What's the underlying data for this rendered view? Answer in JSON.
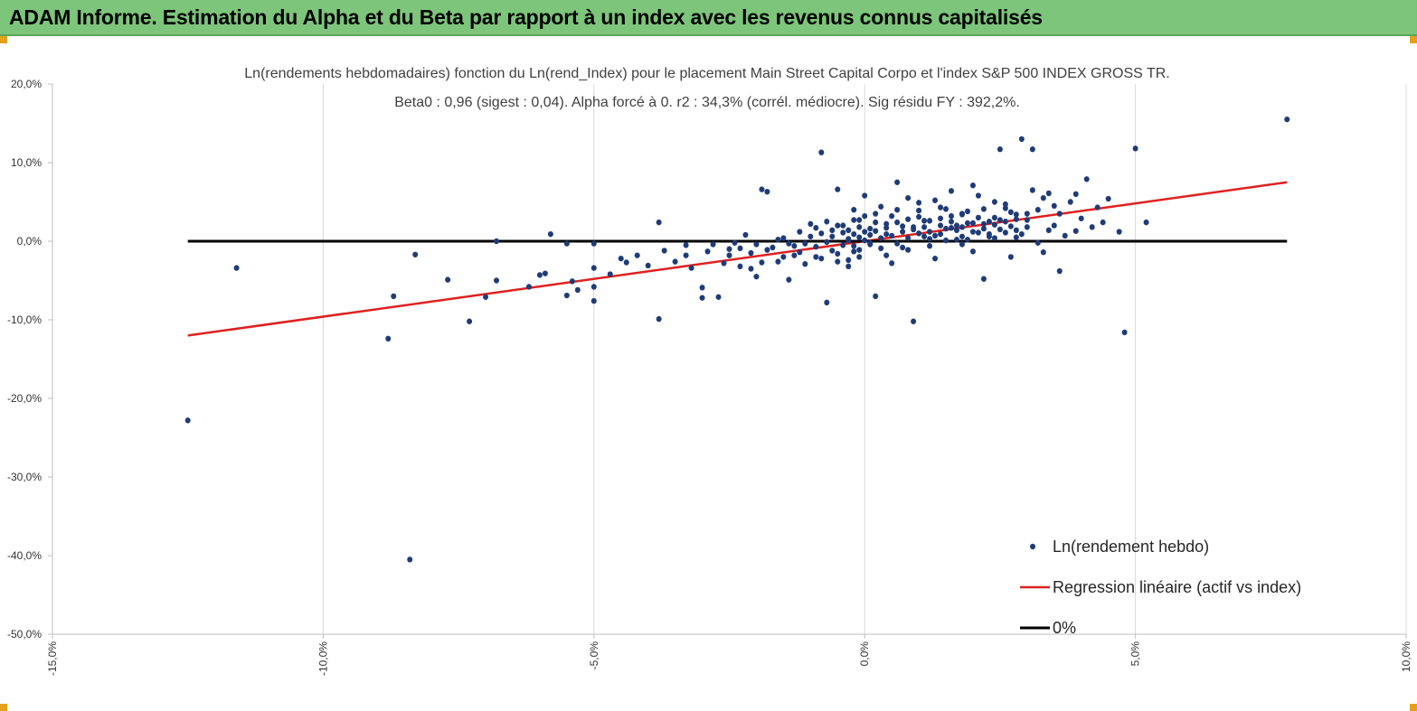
{
  "banner": {
    "title": "ADAM Informe. Estimation du Alpha et du Beta par rapport à un index avec les revenus connus capitalisés",
    "color": "#7cc57a"
  },
  "chart_data": {
    "type": "scatter",
    "title": "Ln(rendements hebdomadaires) fonction du Ln(rend_Index) pour le placement Main Street Capital Corpo et l'index S&P 500 INDEX GROSS TR.",
    "subtitle": "Beta0 : 0,96  (sigest : 0,04). Alpha forcé à 0. r2 : 34,3% (corrél. médiocre). Sig résidu FY : 392,2%.",
    "xlabel": "",
    "ylabel": "",
    "xlim": [
      -0.15,
      0.1
    ],
    "ylim": [
      -0.5,
      0.2
    ],
    "x_ticks": [
      -0.15,
      -0.1,
      -0.05,
      0.0,
      0.05,
      0.1
    ],
    "x_tick_labels": [
      "-15,0%",
      "-10,0%",
      "-5,0%",
      "0,0%",
      "5,0%",
      "10,0%"
    ],
    "y_ticks": [
      0.2,
      0.1,
      0.0,
      -0.1,
      -0.2,
      -0.3,
      -0.4,
      -0.5
    ],
    "y_tick_labels": [
      "20,0%",
      "10,0%",
      "0,0%",
      "-10,0%",
      "-20,0%",
      "-30,0%",
      "-40,0%",
      "-50,0%"
    ],
    "grid": "vertical",
    "legend_position": "bottom-right",
    "series": [
      {
        "name": "Ln(rendement hebdo)",
        "kind": "scatter",
        "color": "#1f3c78",
        "points": [
          [
            -0.125,
            -0.228
          ],
          [
            -0.116,
            -0.034
          ],
          [
            -0.088,
            -0.124
          ],
          [
            -0.087,
            -0.07
          ],
          [
            -0.084,
            -0.405
          ],
          [
            -0.083,
            -0.017
          ],
          [
            -0.077,
            -0.049
          ],
          [
            -0.073,
            -0.102
          ],
          [
            -0.07,
            -0.071
          ],
          [
            -0.068,
            0.0
          ],
          [
            -0.068,
            -0.05
          ],
          [
            -0.062,
            -0.058
          ],
          [
            -0.06,
            -0.043
          ],
          [
            -0.059,
            -0.041
          ],
          [
            -0.058,
            0.009
          ],
          [
            -0.055,
            -0.069
          ],
          [
            -0.055,
            -0.003
          ],
          [
            -0.054,
            -0.051
          ],
          [
            -0.053,
            -0.062
          ],
          [
            -0.05,
            -0.034
          ],
          [
            -0.05,
            -0.076
          ],
          [
            -0.05,
            -0.058
          ],
          [
            -0.05,
            -0.003
          ],
          [
            -0.047,
            -0.042
          ],
          [
            -0.045,
            -0.022
          ],
          [
            -0.044,
            -0.027
          ],
          [
            -0.042,
            -0.018
          ],
          [
            -0.04,
            -0.031
          ],
          [
            -0.038,
            -0.099
          ],
          [
            -0.038,
            0.024
          ],
          [
            -0.037,
            -0.012
          ],
          [
            -0.035,
            -0.026
          ],
          [
            -0.033,
            -0.018
          ],
          [
            -0.033,
            -0.005
          ],
          [
            -0.032,
            -0.034
          ],
          [
            -0.03,
            -0.072
          ],
          [
            -0.03,
            -0.059
          ],
          [
            -0.029,
            -0.013
          ],
          [
            -0.028,
            -0.004
          ],
          [
            -0.027,
            -0.071
          ],
          [
            -0.026,
            -0.028
          ],
          [
            -0.025,
            -0.018
          ],
          [
            -0.024,
            -0.002
          ],
          [
            -0.023,
            -0.009
          ],
          [
            -0.022,
            0.008
          ],
          [
            -0.021,
            -0.035
          ],
          [
            -0.02,
            -0.045
          ],
          [
            -0.019,
            0.066
          ],
          [
            -0.018,
            0.063
          ],
          [
            -0.018,
            -0.011
          ],
          [
            -0.016,
            -0.026
          ],
          [
            -0.015,
            0.004
          ],
          [
            -0.014,
            -0.049
          ],
          [
            -0.013,
            -0.018
          ],
          [
            -0.012,
            0.012
          ],
          [
            -0.011,
            -0.003
          ],
          [
            -0.01,
            0.022
          ],
          [
            -0.009,
            -0.02
          ],
          [
            -0.008,
            0.01
          ],
          [
            -0.007,
            -0.078
          ],
          [
            -0.006,
            0.014
          ],
          [
            -0.005,
            0.066
          ],
          [
            -0.004,
            -0.005
          ],
          [
            -0.003,
            -0.024
          ],
          [
            -0.002,
            0.009
          ],
          [
            -0.001,
            -0.011
          ],
          [
            -0.007,
            0.025
          ],
          [
            -0.004,
            0.02
          ],
          [
            -0.002,
            0.027
          ],
          [
            -0.001,
            0.018
          ],
          [
            0.0,
            0.032
          ],
          [
            0.0,
            0.012
          ],
          [
            0.001,
            -0.002
          ],
          [
            -0.008,
            0.113
          ],
          [
            -0.006,
            0.006
          ],
          [
            -0.005,
            0.02
          ],
          [
            -0.003,
            -0.032
          ],
          [
            -0.002,
            -0.013
          ],
          [
            0.002,
            -0.07
          ],
          [
            0.003,
            0.004
          ],
          [
            0.004,
            0.017
          ],
          [
            0.005,
            -0.028
          ],
          [
            0.006,
            0.04
          ],
          [
            0.006,
            0.075
          ],
          [
            0.007,
            0.012
          ],
          [
            0.008,
            0.028
          ],
          [
            0.009,
            0.018
          ],
          [
            0.009,
            -0.102
          ],
          [
            0.01,
            0.049
          ],
          [
            0.011,
            0.006
          ],
          [
            0.012,
            0.026
          ],
          [
            0.013,
            -0.022
          ],
          [
            0.014,
            0.043
          ],
          [
            0.015,
            0.016
          ],
          [
            0.016,
            0.064
          ],
          [
            0.017,
            0.002
          ],
          [
            0.018,
            0.034
          ],
          [
            0.019,
            0.023
          ],
          [
            0.02,
            -0.013
          ],
          [
            0.021,
            0.058
          ],
          [
            0.022,
            0.022
          ],
          [
            0.023,
            0.006
          ],
          [
            0.024,
            0.03
          ],
          [
            0.025,
            0.117
          ],
          [
            0.026,
            0.047
          ],
          [
            0.027,
            -0.02
          ],
          [
            0.028,
            0.034
          ],
          [
            0.029,
            0.13
          ],
          [
            0.03,
            0.018
          ],
          [
            0.031,
            0.117
          ],
          [
            0.032,
            0.04
          ],
          [
            0.033,
            -0.014
          ],
          [
            0.034,
            0.061
          ],
          [
            0.035,
            0.02
          ],
          [
            0.036,
            -0.038
          ],
          [
            0.037,
            0.007
          ],
          [
            0.038,
            0.05
          ],
          [
            0.039,
            0.013
          ],
          [
            0.04,
            0.029
          ],
          [
            0.041,
            0.079
          ],
          [
            0.042,
            0.018
          ],
          [
            0.043,
            0.043
          ],
          [
            0.044,
            0.024
          ],
          [
            0.045,
            0.054
          ],
          [
            0.047,
            0.012
          ],
          [
            0.048,
            -0.116
          ],
          [
            0.05,
            0.118
          ],
          [
            0.052,
            0.024
          ],
          [
            0.078,
            0.155
          ],
          [
            0.039,
            0.06
          ],
          [
            0.036,
            0.035
          ],
          [
            0.033,
            0.055
          ],
          [
            0.031,
            0.065
          ],
          [
            0.028,
            0.028
          ],
          [
            0.026,
            0.042
          ],
          [
            0.024,
            0.05
          ],
          [
            0.022,
            -0.048
          ],
          [
            0.02,
            0.071
          ],
          [
            0.018,
            0.035
          ],
          [
            0.017,
            0.02
          ],
          [
            0.015,
            0.041
          ],
          [
            0.013,
            0.052
          ],
          [
            0.011,
            0.018
          ],
          [
            0.01,
            0.031
          ],
          [
            0.008,
            0.055
          ],
          [
            0.007,
            -0.008
          ],
          [
            0.005,
            0.032
          ],
          [
            0.004,
            0.009
          ],
          [
            0.003,
            0.044
          ],
          [
            0.002,
            0.024
          ],
          [
            0.001,
            0.016
          ],
          [
            0.001,
            -0.004
          ],
          [
            0.0,
            0.058
          ],
          [
            -0.001,
            0.027
          ],
          [
            -0.002,
            0.04
          ],
          [
            -0.003,
            0.003
          ],
          [
            0.012,
            0.003
          ],
          [
            0.014,
            0.029
          ],
          [
            0.016,
            0.017
          ],
          [
            0.018,
            0.006
          ],
          [
            0.019,
            0.038
          ],
          [
            0.021,
            0.011
          ],
          [
            0.023,
            0.025
          ],
          [
            0.025,
            0.015
          ],
          [
            0.027,
            0.037
          ],
          [
            0.029,
            0.009
          ],
          [
            0.03,
            0.027
          ],
          [
            0.032,
            -0.002
          ],
          [
            0.034,
            0.014
          ],
          [
            0.035,
            0.045
          ],
          [
            -0.016,
            0.002
          ],
          [
            -0.014,
            -0.003
          ],
          [
            -0.012,
            -0.014
          ],
          [
            -0.01,
            0.006
          ],
          [
            -0.009,
            -0.007
          ],
          [
            -0.008,
            -0.022
          ],
          [
            -0.006,
            -0.012
          ],
          [
            -0.005,
            -0.026
          ],
          [
            -0.004,
            0.011
          ],
          [
            -0.003,
            0.001
          ],
          [
            -0.002,
            -0.006
          ],
          [
            -0.001,
            0.005
          ],
          [
            0.001,
            0.008
          ],
          [
            0.002,
            0.013
          ],
          [
            0.003,
            -0.009
          ],
          [
            0.004,
            0.022
          ],
          [
            0.005,
            0.007
          ],
          [
            0.006,
            -0.003
          ],
          [
            0.007,
            0.019
          ],
          [
            0.008,
            0.004
          ],
          [
            0.009,
            0.015
          ],
          [
            0.01,
            0.01
          ],
          [
            0.011,
            0.026
          ],
          [
            0.012,
            0.012
          ],
          [
            0.013,
            0.007
          ],
          [
            0.014,
            0.02
          ],
          [
            0.015,
            0.001
          ],
          [
            0.016,
            0.025
          ],
          [
            0.017,
            0.014
          ],
          [
            0.018,
            0.018
          ],
          [
            0.019,
            0.002
          ],
          [
            0.02,
            0.023
          ],
          [
            0.021,
            0.03
          ],
          [
            0.022,
            0.016
          ],
          [
            0.023,
            0.009
          ],
          [
            0.024,
            0.021
          ],
          [
            0.025,
            0.027
          ],
          [
            0.026,
            0.011
          ],
          [
            0.027,
            0.019
          ],
          [
            0.028,
            0.005
          ],
          [
            -0.025,
            -0.01
          ],
          [
            -0.023,
            -0.032
          ],
          [
            -0.021,
            -0.015
          ],
          [
            -0.02,
            -0.004
          ],
          [
            -0.019,
            -0.027
          ],
          [
            -0.017,
            -0.008
          ],
          [
            -0.015,
            -0.02
          ],
          [
            -0.013,
            -0.006
          ],
          [
            -0.011,
            -0.029
          ],
          [
            -0.009,
            0.017
          ],
          [
            -0.007,
            -0.001
          ],
          [
            -0.005,
            -0.016
          ],
          [
            -0.003,
            0.014
          ],
          [
            -0.001,
            -0.02
          ],
          [
            0.0,
            0.001
          ],
          [
            0.002,
            0.035
          ],
          [
            0.004,
            -0.018
          ],
          [
            0.006,
            0.024
          ],
          [
            0.008,
            -0.011
          ],
          [
            0.01,
            0.039
          ],
          [
            0.012,
            -0.006
          ],
          [
            0.014,
            0.009
          ],
          [
            0.016,
            0.032
          ],
          [
            0.018,
            -0.004
          ],
          [
            0.02,
            0.012
          ],
          [
            0.022,
            0.041
          ],
          [
            0.024,
            0.004
          ],
          [
            0.026,
            0.025
          ],
          [
            0.028,
            0.014
          ],
          [
            0.03,
            0.035
          ]
        ]
      },
      {
        "name": "Regression linéaire (actif vs index)",
        "kind": "line",
        "color": "#e02020",
        "points": [
          [
            -0.125,
            -0.12
          ],
          [
            0.078,
            0.075
          ]
        ]
      },
      {
        "name": "0%",
        "kind": "line",
        "color": "#000000",
        "points": [
          [
            -0.125,
            0.0
          ],
          [
            0.078,
            0.0
          ]
        ]
      }
    ]
  }
}
